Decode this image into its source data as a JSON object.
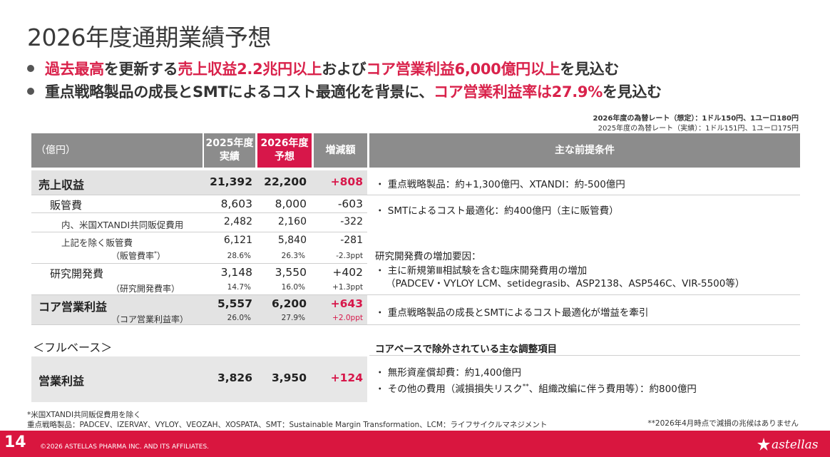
{
  "title": "2026年度通期業績予想",
  "bullets": [
    {
      "segments": [
        {
          "text": "過去最高",
          "red": true
        },
        {
          "text": "を更新する",
          "red": false
        },
        {
          "text": "売上収益2.2兆円以上",
          "red": true
        },
        {
          "text": "および",
          "red": false
        },
        {
          "text": "コア営業利益6,000億円以上",
          "red": true
        },
        {
          "text": "を見込む",
          "red": false
        }
      ]
    },
    {
      "segments": [
        {
          "text": "重点戦略製品の成長とSMTによるコスト最適化を背景に、",
          "red": false
        },
        {
          "text": "コア営業利益率は27.9%",
          "red": true
        },
        {
          "text": "を見込む",
          "red": false
        }
      ]
    }
  ],
  "fx": {
    "line1": "2026年度の為替レート（想定）：1ドル150円、1ユーロ180円",
    "line2": "2025年度の為替レート（実績）：1ドル151円、1ユーロ175円"
  },
  "table": {
    "header": {
      "unit": "（億円）",
      "col1_line1": "2025年度",
      "col1_line2": "実績",
      "col2_line1": "2026年度",
      "col2_line2": "予想",
      "col3": "増減額",
      "premises": "主な前提条件"
    },
    "rows": {
      "sales": {
        "label": "売上収益",
        "v1": "21,392",
        "v2": "22,200",
        "diff": "+808"
      },
      "sga": {
        "label": "販管費",
        "v1": "8,603",
        "v2": "8,000",
        "diff": "-603"
      },
      "xtandi": {
        "label": "内、米国XTANDI共同販促費用",
        "v1": "2,482",
        "v2": "2,160",
        "diff": "-322"
      },
      "sga_ex": {
        "label": "上記を除く販管費",
        "v1": "6,121",
        "v2": "5,840",
        "diff": "-281"
      },
      "sga_ratio": {
        "label": "（販管費率",
        "mark": "*",
        "label_end": "）",
        "v1": "28.6%",
        "v2": "26.3%",
        "diff": "-2.3ppt"
      },
      "rd": {
        "label": "研究開発費",
        "v1": "3,148",
        "v2": "3,550",
        "diff": "+402"
      },
      "rd_ratio": {
        "label": "（研究開発費率）",
        "v1": "14.7%",
        "v2": "16.0%",
        "diff": "+1.3ppt"
      },
      "core": {
        "label": "コア営業利益",
        "v1": "5,557",
        "v2": "6,200",
        "diff": "+643"
      },
      "core_ratio": {
        "label": "（コア営業利益率）",
        "v1": "26.0%",
        "v2": "27.9%",
        "diff": "+2.0ppt"
      },
      "full_basis": {
        "label": "＜フルベース＞"
      },
      "op": {
        "label": "営業利益",
        "v1": "3,826",
        "v2": "3,950",
        "diff": "+124"
      }
    },
    "premises": {
      "sales": "・ 重点戦略製品：約+1,300億円、XTANDI：約-500億円",
      "sga": "・ SMTによるコスト最適化：約400億円（主に販管費）",
      "rd_head": "研究開発費の増加要因：",
      "rd_item1": "・ 主に新規第Ⅲ相試験を含む臨床開発費用の増加",
      "rd_item2": "（PADCEV・VYLOY LCM、setidegrasib、ASP2138、ASP546C、VIR-5500等）",
      "core": "・ 重点戦略製品の成長とSMTによるコスト最適化が増益を牽引",
      "adj_head": "コアベースで除外されている主な調整項目",
      "adj_item1": "・ 無形資産償却費：約1,400億円",
      "adj_item2_a": "・ その他の費用（減損損失リスク",
      "adj_item2_mark": "**",
      "adj_item2_b": "、組織改編に伴う費用等）：約800億円"
    }
  },
  "footnotes": {
    "note1": "*米国XTANDI共同販促費用を除く",
    "note2": "重点戦略製品：PADCEV、IZERVAY、VYLOY、VEOZAH、XOSPATA、SMT：Sustainable Margin Transformation、LCM：ライフサイクルマネジメント",
    "note3": "**2026年4月時点で減損の兆候はありません"
  },
  "footer": {
    "page": "14",
    "copyright": "©2026 ASTELLAS PHARMA INC. AND ITS AFFILIATES.",
    "logo_text": "astellas"
  },
  "colors": {
    "accent": "#d7174a",
    "header_gray": "#8c8c8c",
    "band_gray": "#e3e3e3",
    "footer_red": "#d9163f"
  }
}
